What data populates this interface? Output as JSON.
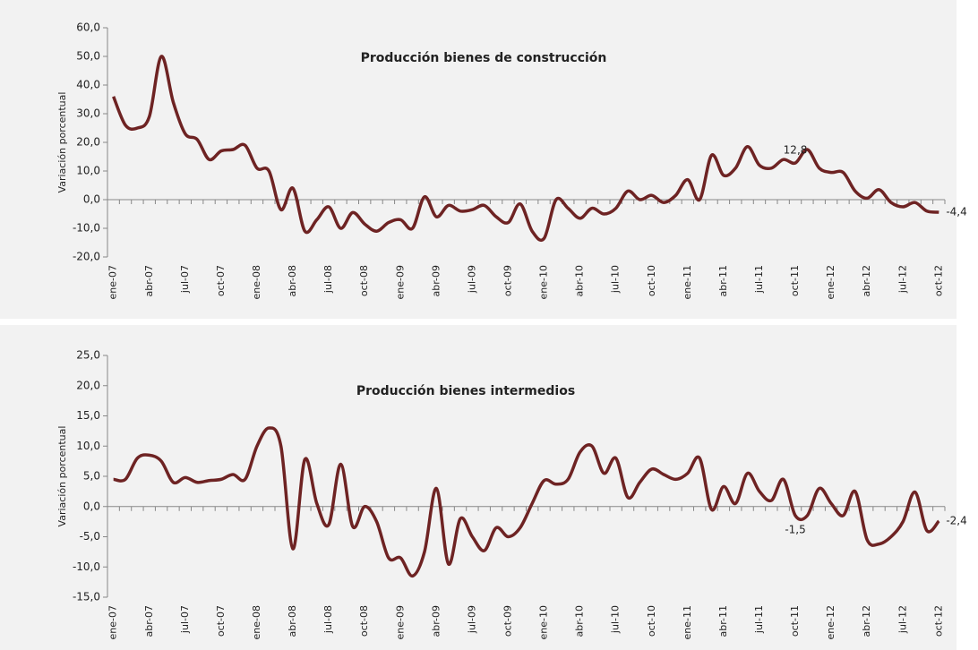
{
  "chart_data": [
    {
      "type": "line",
      "title": "Producción bienes de construcción",
      "y_label": "Variación porcentual",
      "categories": [
        "ene-07",
        null,
        null,
        "abr-07",
        null,
        null,
        "jul-07",
        null,
        null,
        "oct-07",
        null,
        null,
        "ene-08",
        null,
        null,
        "abr-08",
        null,
        null,
        "jul-08",
        null,
        null,
        "oct-08",
        null,
        null,
        "ene-09",
        null,
        null,
        "abr-09",
        null,
        null,
        "jul-09",
        null,
        null,
        "oct-09",
        null,
        null,
        "ene-10",
        null,
        null,
        "abr-10",
        null,
        null,
        "jul-10",
        null,
        null,
        "oct-10",
        null,
        null,
        "ene-11",
        null,
        null,
        "abr-11",
        null,
        null,
        "jul-11",
        null,
        null,
        "oct-11",
        null,
        null,
        "ene-12",
        null,
        null,
        "abr-12",
        null,
        null,
        "jul-12",
        null,
        null,
        "oct-12"
      ],
      "values": [
        36,
        26,
        25,
        29,
        50,
        34,
        23,
        21,
        14,
        17,
        17.5,
        19,
        11,
        10,
        -3.5,
        4,
        -11,
        -7,
        -2.5,
        -10,
        -4.5,
        -8.5,
        -11,
        -8,
        -7,
        -10,
        1,
        -6,
        -2,
        -4,
        -3.5,
        -2,
        -6,
        -8,
        -1.5,
        -11,
        -13.5,
        0,
        -3,
        -6.5,
        -3,
        -5,
        -3,
        3,
        0,
        1.5,
        -1,
        1.5,
        7,
        0,
        15.5,
        8.5,
        11,
        18.5,
        12,
        11,
        14,
        12.8,
        17.5,
        11,
        9.5,
        9.5,
        3,
        0.5,
        3.5,
        -1,
        -2.5,
        -1,
        -4,
        -4.4
      ],
      "value_labels": [
        null,
        null,
        null,
        null,
        null,
        null,
        null,
        null,
        null,
        null,
        null,
        null,
        null,
        null,
        null,
        null,
        null,
        null,
        null,
        null,
        null,
        null,
        null,
        null,
        null,
        null,
        null,
        null,
        null,
        null,
        null,
        null,
        null,
        null,
        null,
        null,
        null,
        null,
        null,
        null,
        null,
        null,
        null,
        null,
        null,
        null,
        null,
        null,
        null,
        null,
        null,
        null,
        null,
        null,
        null,
        null,
        null,
        "12,8",
        null,
        null,
        null,
        null,
        null,
        null,
        null,
        null,
        null,
        null,
        null,
        "-4,4"
      ],
      "color": "#6e2323",
      "ylim": [
        -20,
        60
      ],
      "yticks": [
        {
          "value": -20,
          "label": "-20,0"
        },
        {
          "value": -10,
          "label": "-10,0"
        },
        {
          "value": 0,
          "label": "0,0"
        },
        {
          "value": 10,
          "label": "10,0"
        },
        {
          "value": 20,
          "label": "20,0"
        },
        {
          "value": 30,
          "label": "30,0"
        },
        {
          "value": 40,
          "label": "40,0"
        },
        {
          "value": 50,
          "label": "50,0"
        },
        {
          "value": 60,
          "label": "60,0"
        }
      ]
    },
    {
      "type": "line",
      "title": "Producción bienes intermedios",
      "y_label": "Variación porcentual",
      "categories": [
        "ene-07",
        null,
        null,
        "abr-07",
        null,
        null,
        "jul-07",
        null,
        null,
        "oct-07",
        null,
        null,
        "ene-08",
        null,
        null,
        "abr-08",
        null,
        null,
        "jul-08",
        null,
        null,
        "oct-08",
        null,
        null,
        "ene-09",
        null,
        null,
        "abr-09",
        null,
        null,
        "jul-09",
        null,
        null,
        "oct-09",
        null,
        null,
        "ene-10",
        null,
        null,
        "abr-10",
        null,
        null,
        "jul-10",
        null,
        null,
        "oct-10",
        null,
        null,
        "ene-11",
        null,
        null,
        "abr-11",
        null,
        null,
        "jul-11",
        null,
        null,
        "oct-11",
        null,
        null,
        "ene-12",
        null,
        null,
        "abr-12",
        null,
        null,
        "jul-12",
        null,
        null,
        "oct-12"
      ],
      "values": [
        4.5,
        4.5,
        8,
        8.5,
        7.5,
        4,
        4.8,
        4,
        4.3,
        4.5,
        5.3,
        4.5,
        10,
        13,
        10,
        -7,
        7.8,
        0.5,
        -3,
        7,
        -3.3,
        0,
        -2.5,
        -8.5,
        -8.5,
        -11.5,
        -7.5,
        3,
        -9.5,
        -2,
        -5,
        -7.3,
        -3.5,
        -5,
        -3.5,
        0.5,
        4.3,
        3.7,
        4.5,
        9,
        10,
        5.5,
        8,
        1.5,
        4,
        6.2,
        5.3,
        4.5,
        5.5,
        8,
        -0.5,
        3.3,
        0.5,
        5.5,
        2.5,
        1,
        4.5,
        -1.5,
        -1.5,
        3,
        0.5,
        -1.5,
        2.5,
        -5.5,
        -6.2,
        -5,
        -2.5,
        2.4,
        -4,
        -2.4
      ],
      "value_labels": [
        null,
        null,
        null,
        null,
        null,
        null,
        null,
        null,
        null,
        null,
        null,
        null,
        null,
        null,
        null,
        null,
        null,
        null,
        null,
        null,
        null,
        null,
        null,
        null,
        null,
        null,
        null,
        null,
        null,
        null,
        null,
        null,
        null,
        null,
        null,
        null,
        null,
        null,
        null,
        null,
        null,
        null,
        null,
        null,
        null,
        null,
        null,
        null,
        null,
        null,
        null,
        null,
        null,
        null,
        null,
        null,
        null,
        "-1,5",
        null,
        null,
        null,
        null,
        null,
        null,
        null,
        null,
        null,
        null,
        null,
        "-2,4"
      ],
      "color": "#6e2323",
      "ylim": [
        -15,
        25
      ],
      "yticks": [
        {
          "value": -15,
          "label": "-15,0"
        },
        {
          "value": -10,
          "label": "-10,0"
        },
        {
          "value": -5,
          "label": "-5,0"
        },
        {
          "value": 0,
          "label": "0,0"
        },
        {
          "value": 5,
          "label": "5,0"
        },
        {
          "value": 10,
          "label": "10,0"
        },
        {
          "value": 15,
          "label": "15,0"
        },
        {
          "value": 20,
          "label": "20,0"
        },
        {
          "value": 25,
          "label": "25,0"
        }
      ]
    }
  ]
}
